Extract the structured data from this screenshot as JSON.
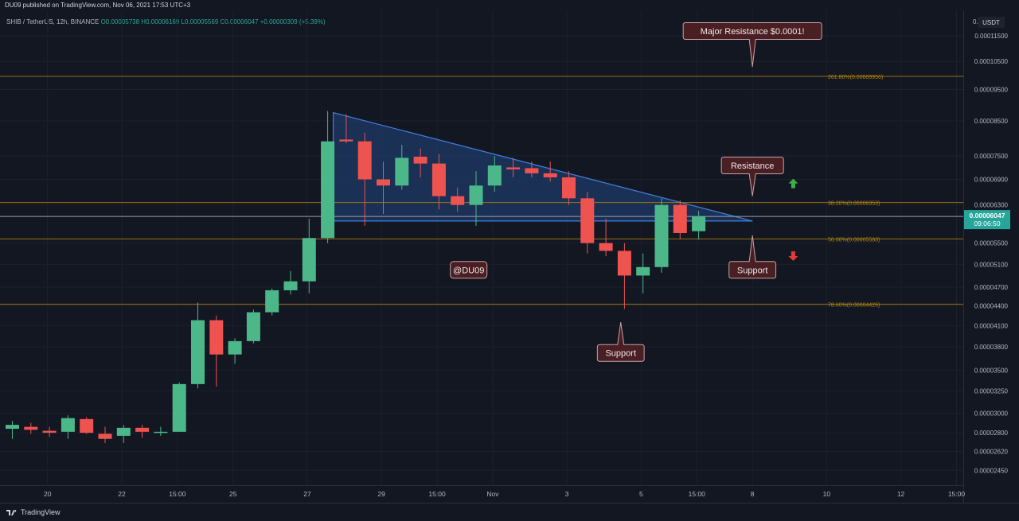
{
  "published_line": "DU09 published on TradingView.com, Nov 06, 2021 17:53 UTC+3",
  "symbol_line": {
    "prefix": "SHIB / TetherUS, 12h, BINANCE",
    "values": "O0.00005738 H0.00006169 L0.00005569 C0.00006047 +0.00000309 (+5.39%)"
  },
  "currency": "USDT",
  "brand": "TradingView",
  "colors": {
    "up": "#26a69a",
    "up_body": "#4cb88a",
    "down": "#ef5350",
    "background": "#131722",
    "triangle": "#1e3a66",
    "fib": "#b8860b"
  },
  "chart_data": {
    "type": "candlestick",
    "symbol": "SHIB / TetherUS",
    "interval": "12h",
    "exchange": "BINANCE",
    "y_scale": "log",
    "ylim": [
      2.38e-05,
      0.000123
    ],
    "y_ticks": [
      "0.00002450",
      "0.00002620",
      "0.00002800",
      "0.00003000",
      "0.00003250",
      "0.00003500",
      "0.00003800",
      "0.00004100",
      "0.00004400",
      "0.00004700",
      "0.00005100",
      "0.00005500",
      "0.00006300",
      "0.00006900",
      "0.00007500",
      "0.00008500",
      "0.00009500",
      "0.00010500",
      "0.00011500"
    ],
    "y_top_tick": "0.0",
    "x_ticks": [
      {
        "label": "20",
        "bar": 1.9
      },
      {
        "label": "22",
        "bar": 5.9
      },
      {
        "label": "15:00",
        "bar": 8.9
      },
      {
        "label": "25",
        "bar": 11.9
      },
      {
        "label": "27",
        "bar": 15.9
      },
      {
        "label": "29",
        "bar": 19.9
      },
      {
        "label": "15:00",
        "bar": 22.9
      },
      {
        "label": "Nov",
        "bar": 25.9
      },
      {
        "label": "3",
        "bar": 29.9
      },
      {
        "label": "5",
        "bar": 33.9
      },
      {
        "label": "15:00",
        "bar": 36.9
      },
      {
        "label": "8",
        "bar": 39.9
      },
      {
        "label": "10",
        "bar": 43.9
      },
      {
        "label": "12",
        "bar": 47.9
      },
      {
        "label": "15:00",
        "bar": 50.9
      }
    ],
    "candles": [
      {
        "o": 2.84e-05,
        "h": 2.92e-05,
        "l": 2.74e-05,
        "c": 2.88e-05
      },
      {
        "o": 2.86e-05,
        "h": 2.9e-05,
        "l": 2.79e-05,
        "c": 2.83e-05
      },
      {
        "o": 2.82e-05,
        "h": 2.86e-05,
        "l": 2.76e-05,
        "c": 2.8e-05
      },
      {
        "o": 2.81e-05,
        "h": 2.98e-05,
        "l": 2.74e-05,
        "c": 2.95e-05
      },
      {
        "o": 2.94e-05,
        "h": 2.96e-05,
        "l": 2.79e-05,
        "c": 2.8e-05
      },
      {
        "o": 2.79e-05,
        "h": 2.86e-05,
        "l": 2.7e-05,
        "c": 2.74e-05
      },
      {
        "o": 2.77e-05,
        "h": 2.88e-05,
        "l": 2.7e-05,
        "c": 2.85e-05
      },
      {
        "o": 2.85e-05,
        "h": 2.88e-05,
        "l": 2.75e-05,
        "c": 2.81e-05
      },
      {
        "o": 2.8e-05,
        "h": 2.86e-05,
        "l": 2.77e-05,
        "c": 2.81e-05
      },
      {
        "o": 2.81e-05,
        "h": 3.35e-05,
        "l": 2.81e-05,
        "c": 3.33e-05
      },
      {
        "o": 3.33e-05,
        "h": 4.45e-05,
        "l": 3.28e-05,
        "c": 4.18e-05
      },
      {
        "o": 4.18e-05,
        "h": 4.25e-05,
        "l": 3.3e-05,
        "c": 3.7e-05
      },
      {
        "o": 3.7e-05,
        "h": 3.92e-05,
        "l": 3.58e-05,
        "c": 3.88e-05
      },
      {
        "o": 3.88e-05,
        "h": 4.34e-05,
        "l": 3.85e-05,
        "c": 4.3e-05
      },
      {
        "o": 4.3e-05,
        "h": 4.68e-05,
        "l": 4.25e-05,
        "c": 4.65e-05
      },
      {
        "o": 4.65e-05,
        "h": 4.98e-05,
        "l": 4.58e-05,
        "c": 4.8e-05
      },
      {
        "o": 4.8e-05,
        "h": 6e-05,
        "l": 4.6e-05,
        "c": 5.6e-05
      },
      {
        "o": 5.6e-05,
        "h": 8.8e-05,
        "l": 5.5e-05,
        "c": 7.9e-05
      },
      {
        "o": 7.95e-05,
        "h": 8.7e-05,
        "l": 7.85e-05,
        "c": 7.9e-05
      },
      {
        "o": 7.9e-05,
        "h": 8.15e-05,
        "l": 5.85e-05,
        "c": 6.9e-05
      },
      {
        "o": 6.9e-05,
        "h": 7.35e-05,
        "l": 6.1e-05,
        "c": 6.75e-05
      },
      {
        "o": 6.75e-05,
        "h": 7.8e-05,
        "l": 6.65e-05,
        "c": 7.45e-05
      },
      {
        "o": 7.48e-05,
        "h": 7.7e-05,
        "l": 6.95e-05,
        "c": 7.3e-05
      },
      {
        "o": 7.3e-05,
        "h": 7.55e-05,
        "l": 6.2e-05,
        "c": 6.5e-05
      },
      {
        "o": 6.5e-05,
        "h": 6.7e-05,
        "l": 6.15e-05,
        "c": 6.3e-05
      },
      {
        "o": 6.3e-05,
        "h": 7.1e-05,
        "l": 5.85e-05,
        "c": 6.75e-05
      },
      {
        "o": 6.75e-05,
        "h": 7.5e-05,
        "l": 6.6e-05,
        "c": 7.25e-05
      },
      {
        "o": 7.2e-05,
        "h": 7.45e-05,
        "l": 6.95e-05,
        "c": 7.15e-05
      },
      {
        "o": 7.18e-05,
        "h": 7.35e-05,
        "l": 6.95e-05,
        "c": 7.05e-05
      },
      {
        "o": 7.05e-05,
        "h": 7.35e-05,
        "l": 6.85e-05,
        "c": 6.95e-05
      },
      {
        "o": 6.95e-05,
        "h": 7.1e-05,
        "l": 6.3e-05,
        "c": 6.45e-05
      },
      {
        "o": 6.45e-05,
        "h": 6.6e-05,
        "l": 5.3e-05,
        "c": 5.5e-05
      },
      {
        "o": 5.5e-05,
        "h": 6e-05,
        "l": 5.25e-05,
        "c": 5.35e-05
      },
      {
        "o": 5.35e-05,
        "h": 5.5e-05,
        "l": 4.35e-05,
        "c": 4.9e-05
      },
      {
        "o": 4.9e-05,
        "h": 5.3e-05,
        "l": 4.6e-05,
        "c": 5.05e-05
      },
      {
        "o": 5.05e-05,
        "h": 6.45e-05,
        "l": 4.95e-05,
        "c": 6.3e-05
      },
      {
        "o": 6.3e-05,
        "h": 6.4e-05,
        "l": 5.58e-05,
        "c": 5.7e-05
      },
      {
        "o": 5.738e-05,
        "h": 6.169e-05,
        "l": 5.569e-05,
        "c": 6.047e-05
      }
    ],
    "last_price": "0.00006047",
    "countdown": "09:06:50",
    "fib_levels": [
      {
        "label": "261.80%(0.00009956)",
        "price": 9.956e-05,
        "line": true
      },
      {
        "label": "38.20%(0.00006353)",
        "price": 6.353e-05,
        "line": true
      },
      {
        "label": "50.00%(0.00005583)",
        "price": 5.583e-05,
        "line": true
      },
      {
        "label": "78.60%(0.00004426)",
        "price": 4.426e-05,
        "line": true
      }
    ],
    "hline_price": 6.047e-05,
    "triangle": {
      "bars": [
        17.3,
        39.9
      ],
      "top_price": 8.75e-05,
      "bottom_price": 5.95e-05
    },
    "annotations": [
      {
        "text": "Major Resistance $0.0001!",
        "bar": 39.9,
        "price": 0.000117,
        "pointer": "down",
        "pointer_price": 0.000103
      },
      {
        "text": "Resistance",
        "bar": 39.9,
        "price": 7.25e-05,
        "pointer": "down",
        "pointer_price": 6.5e-05
      },
      {
        "text": "Support",
        "bar": 39.9,
        "price": 5e-05,
        "pointer": "up",
        "pointer_price": 5.65e-05
      },
      {
        "text": "Support",
        "bar": 32.8,
        "price": 3.72e-05,
        "pointer": "up",
        "pointer_price": 4.15e-05
      },
      {
        "text": "@DU09",
        "bar": 24.6,
        "price": 5e-05,
        "pointer": "none"
      }
    ],
    "arrows": [
      {
        "direction": "up",
        "bar": 42.1,
        "price": 6.8e-05
      },
      {
        "direction": "down",
        "bar": 42.1,
        "price": 5.25e-05
      }
    ]
  }
}
